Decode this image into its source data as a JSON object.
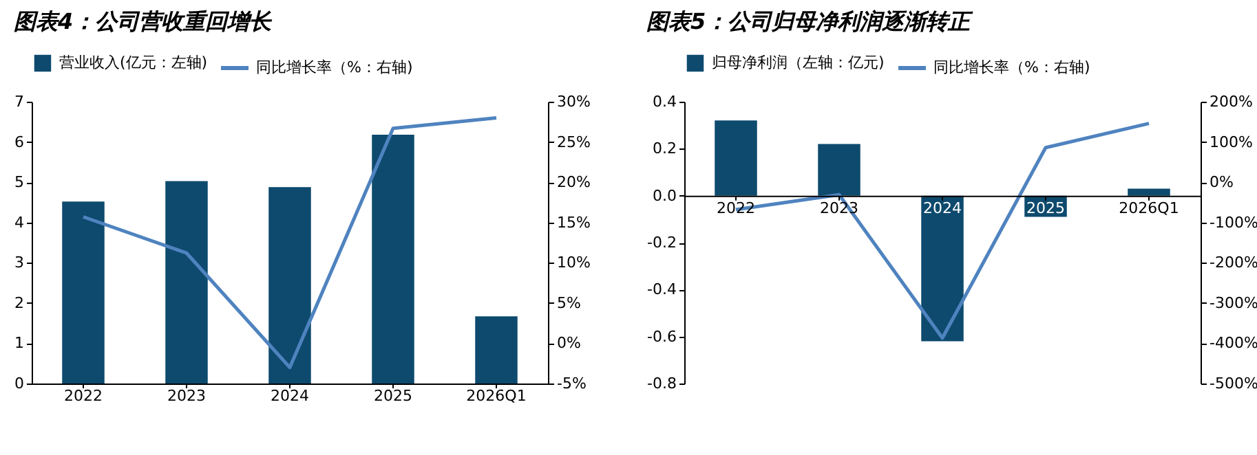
{
  "chart_data": [
    {
      "type": "bar",
      "title": "图表4：公司营收重回增长",
      "categories": [
        "2022",
        "2023",
        "2024",
        "2025",
        "2026Q1"
      ],
      "series": [
        {
          "name": "营业收入(亿元：左轴)",
          "color": "#0d4a6e",
          "values": [
            4.52,
            5.03,
            4.88,
            6.18,
            1.67
          ]
        },
        {
          "name": "同比增长率（%：右轴)",
          "type": "line",
          "axis": "y2",
          "color": "#4f83bf",
          "values": [
            15.7,
            11.2,
            -3,
            26.7,
            28
          ]
        }
      ],
      "ylim": [
        0,
        7
      ],
      "yticks": [
        0,
        1,
        2,
        3,
        4,
        5,
        6,
        7
      ],
      "y2lim": [
        -5,
        30
      ],
      "y2ticks": [
        {
          "value": -5,
          "label": "-5%"
        },
        {
          "value": 0,
          "label": "0%"
        },
        {
          "value": 5,
          "label": "5%"
        },
        {
          "value": 10,
          "label": "10%"
        },
        {
          "value": 15,
          "label": "15%"
        },
        {
          "value": 20,
          "label": "20%"
        },
        {
          "value": 25,
          "label": "25%"
        },
        {
          "value": 30,
          "label": "30%"
        }
      ],
      "legend": "top"
    },
    {
      "type": "bar",
      "title": "图表5：公司归母净利润逐渐转正",
      "categories": [
        "2022",
        "2023",
        "2024",
        "2025",
        "2026Q1"
      ],
      "series": [
        {
          "name": "归母净利润（左轴：亿元)",
          "color": "#0d4a6e",
          "values": [
            0.32,
            0.22,
            -0.62,
            -0.09,
            0.03
          ]
        },
        {
          "name": "同比增长率（%：右轴)",
          "type": "line",
          "axis": "y2",
          "color": "#4f83bf",
          "values": [
            -68,
            -31,
            -387,
            86,
            146
          ]
        }
      ],
      "ylim": [
        -0.8,
        0.4
      ],
      "yticks": [
        {
          "value": -0.8,
          "label": "-0.8"
        },
        -0.6,
        -0.4,
        -0.2,
        {
          "value": 0,
          "label": "0.0"
        },
        0.2,
        0.4
      ],
      "y2lim": [
        -500,
        200
      ],
      "y2ticks": [
        {
          "value": -500,
          "label": "-500%"
        },
        {
          "value": -400,
          "label": "-400%"
        },
        {
          "value": -300,
          "label": "-300%"
        },
        {
          "value": -200,
          "label": "-200%"
        },
        {
          "value": -100,
          "label": "-100%"
        },
        {
          "value": 0,
          "label": "0%"
        },
        {
          "value": 100,
          "label": "100%"
        },
        {
          "value": 200,
          "label": "200%"
        }
      ],
      "legend": "top"
    }
  ]
}
